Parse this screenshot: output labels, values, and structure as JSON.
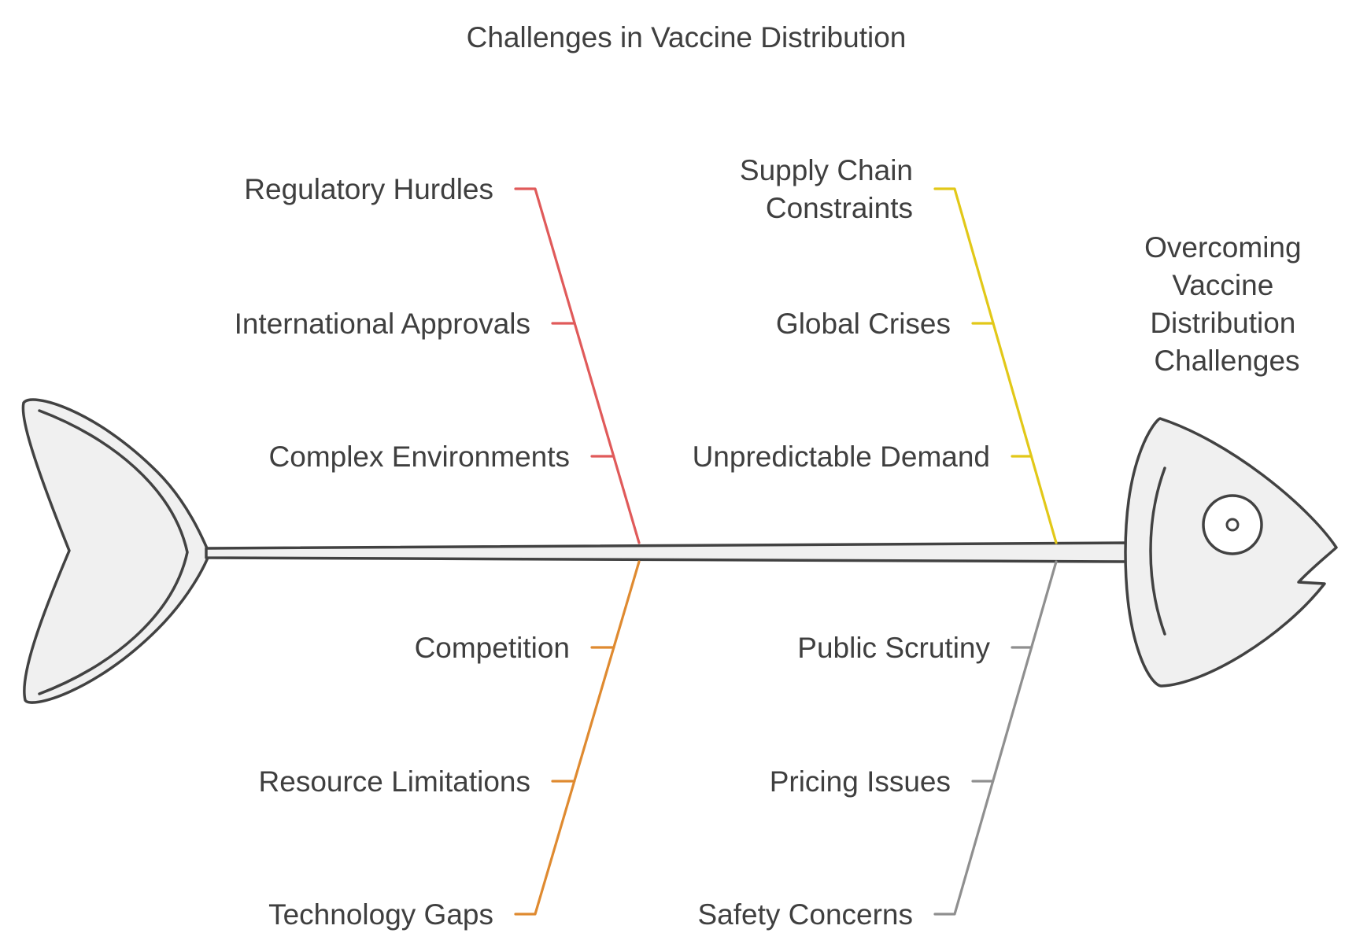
{
  "title": "Challenges in Vaccine Distribution",
  "head_label": [
    "Overcoming",
    "Vaccine",
    "Distribution",
    "Challenges"
  ],
  "branches": [
    {
      "id": "upper-left",
      "color": "#e05a5a",
      "causes": [
        "Regulatory Hurdles",
        "International Approvals",
        "Complex Environments"
      ]
    },
    {
      "id": "upper-right",
      "color": "#e2c818",
      "causes": [
        [
          "Supply Chain",
          "Constraints"
        ],
        "Global Crises",
        "Unpredictable Demand"
      ]
    },
    {
      "id": "lower-left",
      "color": "#df8a30",
      "causes": [
        "Technology Gaps",
        "Resource Limitations",
        "Competition"
      ]
    },
    {
      "id": "lower-right",
      "color": "#8f8f8f",
      "causes": [
        "Safety Concerns",
        "Pricing Issues",
        "Public Scrutiny"
      ]
    }
  ]
}
